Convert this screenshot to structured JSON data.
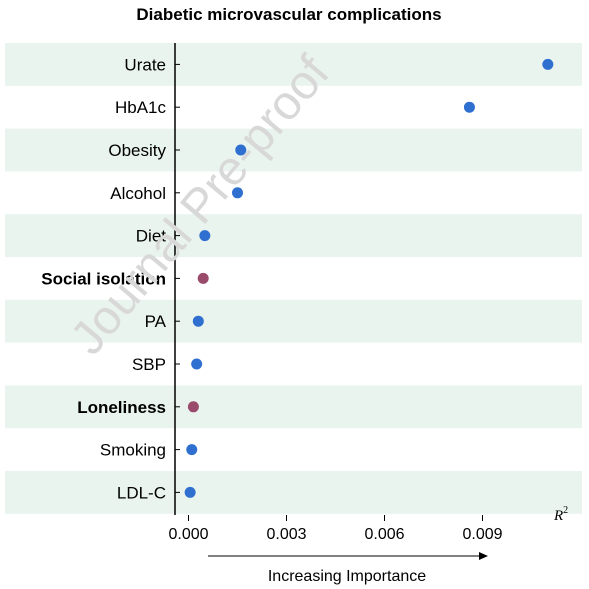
{
  "chart_data": {
    "type": "scatter",
    "title": "Diabetic microvascular complications",
    "xlabel": "R",
    "xlabel_superscript": "2",
    "importance_label": "Increasing Importance",
    "xlim": [
      -0.0005,
      0.0116
    ],
    "xticks": [
      0.0,
      0.003,
      0.006,
      0.009
    ],
    "xtick_labels": [
      "0.000",
      "0.003",
      "0.006",
      "0.009"
    ],
    "categories": [
      "Urate",
      "HbA1c",
      "Obesity",
      "Alcohol",
      "Diet",
      "Social isolation",
      "PA",
      "SBP",
      "Loneliness",
      "Smoking",
      "LDL-C"
    ],
    "values": [
      0.011,
      0.0086,
      0.0016,
      0.0015,
      0.0005,
      0.00045,
      0.0003,
      0.00025,
      0.00015,
      0.0001,
      5e-05
    ],
    "bold_categories": [
      "Social isolation",
      "Loneliness"
    ],
    "colors": {
      "default": "#2e6fd0",
      "highlight": "#9a4a6a",
      "band": "#e9f4ee"
    },
    "watermark": "Journal Pre-proof"
  }
}
